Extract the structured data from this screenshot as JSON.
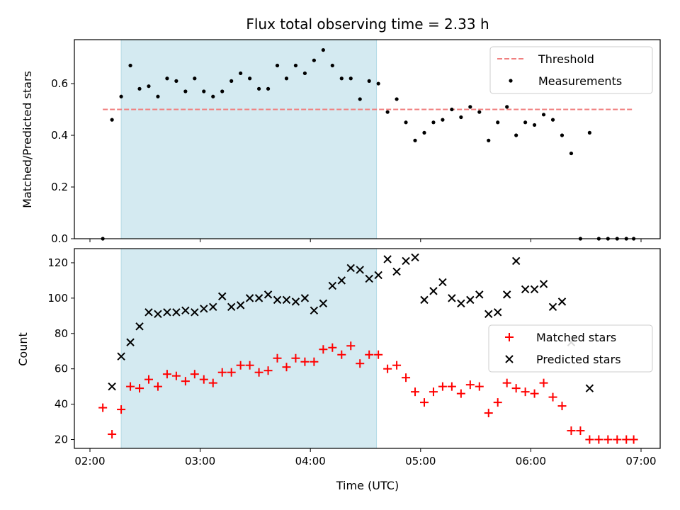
{
  "chart_data": [
    {
      "type": "scatter",
      "title": "Flux total observing time = 2.33 h",
      "xlabel": "",
      "ylabel": "Matched/Predicted stars",
      "xlim": [
        "02:00",
        "07:00"
      ],
      "ylim": [
        0,
        0.77
      ],
      "yticks": [
        0.0,
        0.2,
        0.4,
        0.6
      ],
      "ytick_labels": [
        "0.0",
        "0.2",
        "0.4",
        "0.6"
      ],
      "legend_position": "top-right",
      "shaded_span": {
        "start": "02:17",
        "end": "04:36",
        "color": "#d4eaf1"
      },
      "threshold": {
        "name": "Threshold",
        "value": 0.5,
        "x_start": "02:07",
        "x_end": "06:56",
        "color": "#f08080"
      },
      "series": [
        {
          "name": "Measurements",
          "color": "#000000",
          "marker": "dot",
          "x": [
            "02:07",
            "02:12",
            "02:17",
            "02:22",
            "02:27",
            "02:32",
            "02:37",
            "02:42",
            "02:47",
            "02:52",
            "02:57",
            "03:02",
            "03:07",
            "03:12",
            "03:17",
            "03:22",
            "03:27",
            "03:32",
            "03:37",
            "03:42",
            "03:47",
            "03:52",
            "03:57",
            "04:02",
            "04:07",
            "04:12",
            "04:17",
            "04:22",
            "04:27",
            "04:32",
            "04:37",
            "04:42",
            "04:47",
            "04:52",
            "04:57",
            "05:02",
            "05:07",
            "05:12",
            "05:17",
            "05:22",
            "05:27",
            "05:32",
            "05:37",
            "05:42",
            "05:47",
            "05:52",
            "05:57",
            "06:02",
            "06:07",
            "06:12",
            "06:17",
            "06:22",
            "06:27",
            "06:32",
            "06:37",
            "06:42",
            "06:47",
            "06:52",
            "06:56"
          ],
          "y": [
            0.0,
            0.46,
            0.55,
            0.67,
            0.58,
            0.59,
            0.55,
            0.62,
            0.61,
            0.57,
            0.62,
            0.57,
            0.55,
            0.57,
            0.61,
            0.64,
            0.62,
            0.58,
            0.58,
            0.67,
            0.62,
            0.67,
            0.64,
            0.69,
            0.73,
            0.67,
            0.62,
            0.62,
            0.54,
            0.61,
            0.6,
            0.49,
            0.54,
            0.45,
            0.38,
            0.41,
            0.45,
            0.46,
            0.5,
            0.47,
            0.51,
            0.49,
            0.38,
            0.45,
            0.51,
            0.4,
            0.45,
            0.44,
            0.48,
            0.46,
            0.4,
            0.33,
            0.0,
            0.41,
            0.0,
            0.0,
            0.0,
            0.0,
            0.0
          ]
        }
      ]
    },
    {
      "type": "scatter",
      "title": "",
      "xlabel": "Time (UTC)",
      "ylabel": "Count",
      "xlim": [
        "02:00",
        "07:00"
      ],
      "ylim": [
        15,
        128
      ],
      "yticks": [
        20,
        40,
        60,
        80,
        100,
        120
      ],
      "ytick_labels": [
        "20",
        "40",
        "60",
        "80",
        "100",
        "120"
      ],
      "xtick_labels": [
        "02:00",
        "03:00",
        "04:00",
        "05:00",
        "06:00",
        "07:00"
      ],
      "legend_position": "center-right",
      "shaded_span": {
        "start": "02:17",
        "end": "04:36",
        "color": "#d4eaf1"
      },
      "series": [
        {
          "name": "Matched stars",
          "color": "#ff0000",
          "marker": "plus",
          "x": [
            "02:07",
            "02:12",
            "02:17",
            "02:22",
            "02:27",
            "02:32",
            "02:37",
            "02:42",
            "02:47",
            "02:52",
            "02:57",
            "03:02",
            "03:07",
            "03:12",
            "03:17",
            "03:22",
            "03:27",
            "03:32",
            "03:37",
            "03:42",
            "03:47",
            "03:52",
            "03:57",
            "04:02",
            "04:07",
            "04:12",
            "04:17",
            "04:22",
            "04:27",
            "04:32",
            "04:37",
            "04:42",
            "04:47",
            "04:52",
            "04:57",
            "05:02",
            "05:07",
            "05:12",
            "05:17",
            "05:22",
            "05:27",
            "05:32",
            "05:37",
            "05:42",
            "05:47",
            "05:52",
            "05:57",
            "06:02",
            "06:07",
            "06:12",
            "06:17",
            "06:22",
            "06:27",
            "06:32",
            "06:37",
            "06:42",
            "06:47",
            "06:52",
            "06:56"
          ],
          "y": [
            38,
            23,
            37,
            50,
            49,
            54,
            50,
            57,
            56,
            53,
            57,
            54,
            52,
            58,
            58,
            62,
            62,
            58,
            59,
            66,
            61,
            66,
            64,
            64,
            71,
            72,
            68,
            73,
            63,
            68,
            68,
            60,
            62,
            55,
            47,
            41,
            47,
            50,
            50,
            46,
            51,
            50,
            35,
            41,
            52,
            49,
            47,
            46,
            52,
            44,
            39,
            25,
            25,
            20,
            20,
            20,
            20,
            20,
            20
          ]
        },
        {
          "name": "Predicted stars",
          "color": "#000000",
          "marker": "x",
          "x": [
            "02:12",
            "02:17",
            "02:22",
            "02:27",
            "02:32",
            "02:37",
            "02:42",
            "02:47",
            "02:52",
            "02:57",
            "03:02",
            "03:07",
            "03:12",
            "03:17",
            "03:22",
            "03:27",
            "03:32",
            "03:37",
            "03:42",
            "03:47",
            "03:52",
            "03:57",
            "04:02",
            "04:07",
            "04:12",
            "04:17",
            "04:22",
            "04:27",
            "04:32",
            "04:37",
            "04:42",
            "04:47",
            "04:52",
            "04:57",
            "05:02",
            "05:07",
            "05:12",
            "05:17",
            "05:22",
            "05:27",
            "05:32",
            "05:37",
            "05:42",
            "05:47",
            "05:52",
            "05:57",
            "06:02",
            "06:07",
            "06:12",
            "06:17",
            "06:22",
            "06:32"
          ],
          "y": [
            50,
            67,
            75,
            84,
            92,
            91,
            92,
            92,
            93,
            92,
            94,
            95,
            101,
            95,
            96,
            100,
            100,
            102,
            99,
            99,
            98,
            100,
            93,
            97,
            107,
            110,
            117,
            116,
            111,
            113,
            122,
            115,
            121,
            123,
            99,
            104,
            109,
            100,
            97,
            99,
            102,
            91,
            92,
            102,
            121,
            105,
            105,
            108,
            95,
            98,
            75,
            49
          ]
        }
      ]
    }
  ]
}
